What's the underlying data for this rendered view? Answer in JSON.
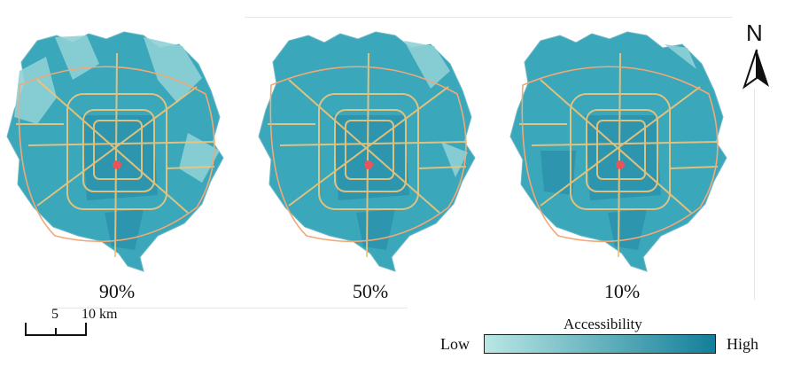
{
  "panels": [
    {
      "label": "90%"
    },
    {
      "label": "50%"
    },
    {
      "label": "10%"
    }
  ],
  "north_arrow": {
    "letter": "N",
    "icon": "north-arrow-icon"
  },
  "scale_bar": {
    "ticks": [
      "5",
      "10 km"
    ]
  },
  "legend": {
    "title": "Accessibility",
    "low_label": "Low",
    "high_label": "High",
    "low_color": "#b9e7e4",
    "high_color": "#137f99"
  },
  "colors": {
    "map_base": "#3aa7bb",
    "map_dark": "#2b93ab",
    "map_light": "#8fd0d6",
    "roads": "#f0c57a",
    "center_marker": "#e8545c"
  }
}
